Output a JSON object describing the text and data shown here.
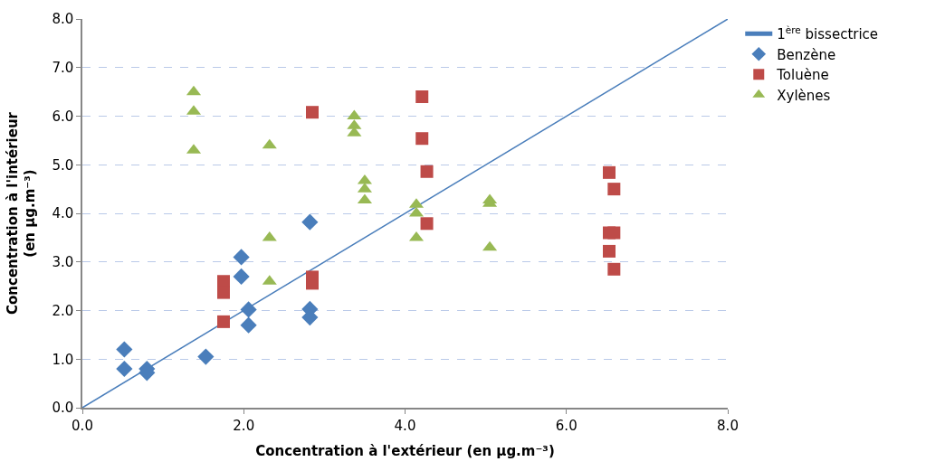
{
  "chart_data": {
    "type": "scatter",
    "xlabel": "Concentration à l'extérieur (en µg.m⁻³)",
    "ylabel": "Concentration à l'intérieur (en µg.m⁻³)",
    "xlim": [
      0,
      8
    ],
    "ylim": [
      0,
      8
    ],
    "xticks": [
      {
        "value": 0,
        "label": "0.0"
      },
      {
        "value": 2,
        "label": "2.0"
      },
      {
        "value": 4,
        "label": "4.0"
      },
      {
        "value": 6,
        "label": "6.0"
      },
      {
        "value": 8,
        "label": "8.0"
      }
    ],
    "yticks": [
      {
        "value": 0,
        "label": "0.0"
      },
      {
        "value": 1,
        "label": "1.0"
      },
      {
        "value": 2,
        "label": "2.0"
      },
      {
        "value": 3,
        "label": "3.0"
      },
      {
        "value": 4,
        "label": "4.0"
      },
      {
        "value": 5,
        "label": "5.0"
      },
      {
        "value": 6,
        "label": "6.0"
      },
      {
        "value": 7,
        "label": "7.0"
      },
      {
        "value": 8,
        "label": "8.0"
      }
    ],
    "grid": "y",
    "legend": "right",
    "series": [
      {
        "name": "1$^{ère}$ bissectrice",
        "type": "line",
        "color": "#4a7ebb",
        "marker": "none",
        "x": [
          0,
          8
        ],
        "values": [
          0,
          8
        ]
      },
      {
        "name": "Benzène",
        "marker": "diamond",
        "color": "#4a7ebb",
        "x": [
          0.52,
          0.52,
          0.8,
          0.8,
          1.53,
          1.97,
          1.97,
          2.06,
          2.06,
          2.82,
          2.82,
          2.82
        ],
        "values": [
          1.2,
          0.8,
          0.8,
          0.72,
          1.05,
          3.1,
          2.7,
          2.02,
          1.7,
          3.82,
          2.03,
          1.86
        ]
      },
      {
        "name": "Toluène",
        "marker": "square",
        "color": "#be4b48",
        "x": [
          1.75,
          1.75,
          1.75,
          2.85,
          2.85,
          2.85,
          4.21,
          4.21,
          4.27,
          4.27,
          6.53,
          6.59,
          6.53,
          6.59,
          6.53,
          6.59
        ],
        "values": [
          2.6,
          2.37,
          1.77,
          6.08,
          2.69,
          2.56,
          6.4,
          5.54,
          4.86,
          3.79,
          4.84,
          4.5,
          3.6,
          3.6,
          3.22,
          2.85
        ]
      },
      {
        "name": "Xylènes",
        "marker": "triangle",
        "color": "#98b954",
        "x": [
          1.38,
          1.38,
          1.38,
          2.32,
          2.32,
          2.32,
          3.37,
          3.37,
          3.37,
          3.5,
          3.5,
          3.5,
          4.14,
          4.14,
          4.14,
          5.05,
          5.05,
          5.05
        ],
        "values": [
          6.5,
          6.1,
          5.3,
          5.4,
          3.5,
          2.6,
          6.0,
          5.8,
          5.65,
          4.67,
          4.5,
          4.27,
          4.18,
          4.0,
          3.5,
          4.27,
          4.2,
          3.3
        ]
      }
    ]
  }
}
